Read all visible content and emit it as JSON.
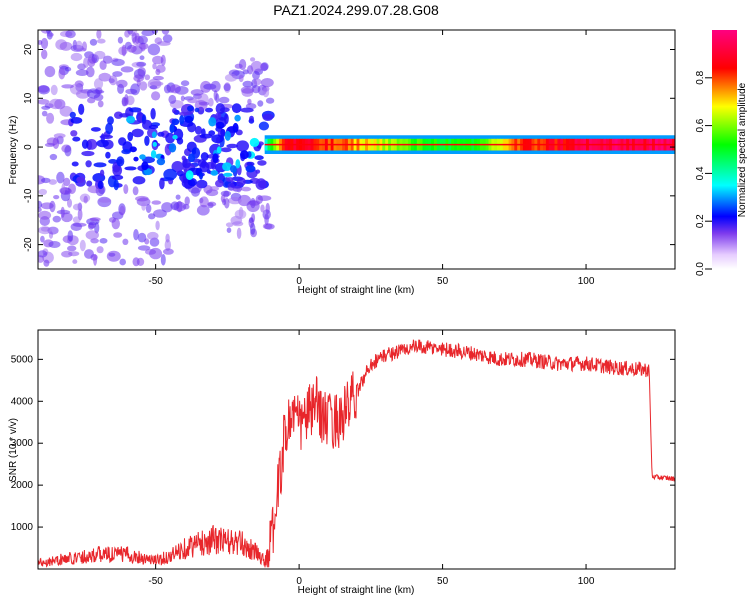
{
  "title": "PAZ1.2024.299.07.28.G08",
  "colors": {
    "snr_line": "#e8262b",
    "frame": "#000000",
    "blob_light": "#dcc6f5",
    "blob_dark": "#7a1ee0"
  },
  "chart_data": [
    {
      "type": "heatmap",
      "xlabel": "Height of straight line (km)",
      "ylabel": "Frequency (Hz)",
      "xlim": [
        -91,
        131
      ],
      "ylim": [
        -25,
        24
      ],
      "xticks": [
        -50,
        0,
        50,
        100
      ],
      "yticks": [
        -20,
        -10,
        0,
        10,
        20
      ],
      "grid": false,
      "colorbar": {
        "label": "Normalized spectral amplitude",
        "range": [
          0,
          1
        ],
        "ticks": [
          0.0,
          0.2,
          0.4,
          0.6,
          0.8
        ],
        "tick_labels": [
          "0.0",
          "0.2",
          "0.4",
          "0.6",
          "0.8"
        ],
        "colormap": [
          "#ffffff",
          "#7c3aed",
          "#0000ff",
          "#00ffff",
          "#00ff00",
          "#ffff00",
          "#ff0000",
          "#ff007f"
        ]
      },
      "band": {
        "x_start": -12,
        "x_end": 131,
        "center_hz": 0.5,
        "half_width_hz": 1.2,
        "profile": [
          {
            "x": -12,
            "amp": 0.4
          },
          {
            "x": -5,
            "amp": 0.9
          },
          {
            "x": 5,
            "amp": 0.85
          },
          {
            "x": 20,
            "amp": 0.75
          },
          {
            "x": 40,
            "amp": 0.55
          },
          {
            "x": 60,
            "amp": 0.5
          },
          {
            "x": 75,
            "amp": 0.8
          },
          {
            "x": 100,
            "amp": 0.95
          },
          {
            "x": 131,
            "amp": 0.95
          }
        ]
      },
      "scatter_region": {
        "x_start": -91,
        "x_end": -10,
        "f_min": -25,
        "f_max": 24,
        "amp_range": [
          0.05,
          0.35
        ]
      }
    },
    {
      "type": "line",
      "xlabel": "Height of straight line (km)",
      "ylabel": "SNR (10 * v/v)",
      "xlim": [
        -91,
        131
      ],
      "ylim": [
        0,
        5700
      ],
      "xticks": [
        -50,
        0,
        50,
        100
      ],
      "yticks": [
        1000,
        2000,
        3000,
        4000,
        5000
      ],
      "grid": false,
      "series": [
        {
          "color": "#e8262b",
          "x": [
            -91,
            -80,
            -70,
            -60,
            -50,
            -45,
            -40,
            -35,
            -30,
            -25,
            -20,
            -15,
            -12,
            -10,
            -8,
            -5,
            -2,
            0,
            3,
            6,
            10,
            15,
            20,
            25,
            30,
            35,
            40,
            50,
            60,
            70,
            80,
            90,
            100,
            110,
            122,
            123,
            131
          ],
          "y": [
            150,
            250,
            350,
            350,
            200,
            300,
            500,
            600,
            700,
            650,
            600,
            400,
            200,
            500,
            1500,
            3200,
            3800,
            3400,
            3700,
            3900,
            3500,
            3600,
            4200,
            4900,
            5100,
            5200,
            5300,
            5250,
            5150,
            5000,
            5000,
            4900,
            4900,
            4800,
            4750,
            2200,
            2150
          ]
        }
      ]
    }
  ]
}
